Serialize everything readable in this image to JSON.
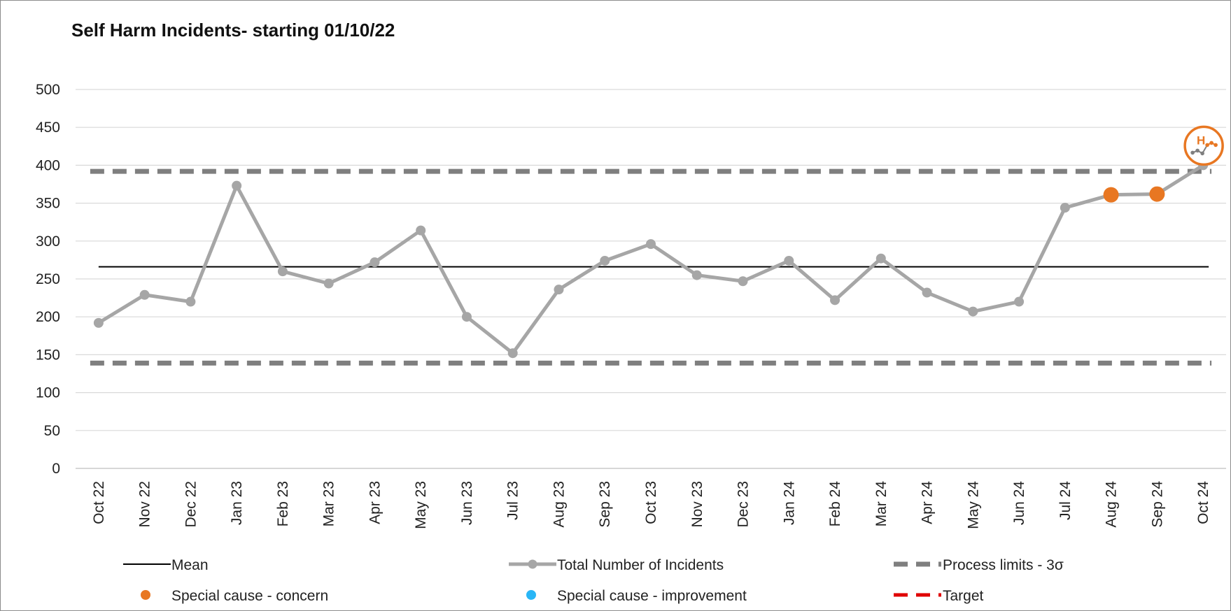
{
  "chart_data": {
    "type": "line",
    "title": "Self Harm Incidents- starting 01/10/22",
    "xlabel": "",
    "ylabel": "",
    "ylim": [
      0,
      500
    ],
    "yticks": [
      0,
      50,
      100,
      150,
      200,
      250,
      300,
      350,
      400,
      450,
      500
    ],
    "categories": [
      "Oct 22",
      "Nov 22",
      "Dec 22",
      "Jan 23",
      "Feb 23",
      "Mar 23",
      "Apr 23",
      "May 23",
      "Jun 23",
      "Jul 23",
      "Aug 23",
      "Sep 23",
      "Oct 23",
      "Nov 23",
      "Dec 23",
      "Jan 24",
      "Feb 24",
      "Mar 24",
      "Apr 24",
      "May 24",
      "Jun 24",
      "Jul 24",
      "Aug 24",
      "Sep 24",
      "Oct 24"
    ],
    "series": [
      {
        "name": "Total Number of Incidents",
        "color": "#a6a6a6",
        "values": [
          192,
          229,
          220,
          373,
          260,
          244,
          272,
          314,
          200,
          152,
          236,
          274,
          296,
          255,
          247,
          274,
          222,
          277,
          232,
          207,
          220,
          344,
          361,
          362,
          400
        ]
      }
    ],
    "mean": {
      "name": "Mean",
      "value": 266,
      "color": "#000000"
    },
    "process_limits": {
      "name": "Process limits - 3σ",
      "upper": 392,
      "lower": 139,
      "color": "#7f7f7f"
    },
    "special_cause_concern": {
      "name": "Special cause - concern",
      "color": "#e87722",
      "indices": [
        22,
        23,
        24
      ]
    },
    "special_cause_improvement": {
      "name": "Special cause  - improvement",
      "color": "#29b6f6",
      "indices": []
    },
    "target": {
      "name": "Target",
      "color": "#e00000"
    },
    "icon": {
      "name": "high-special-cause-icon",
      "letter": "H",
      "color": "#e87722"
    },
    "grid": true,
    "legend_position": "bottom"
  }
}
